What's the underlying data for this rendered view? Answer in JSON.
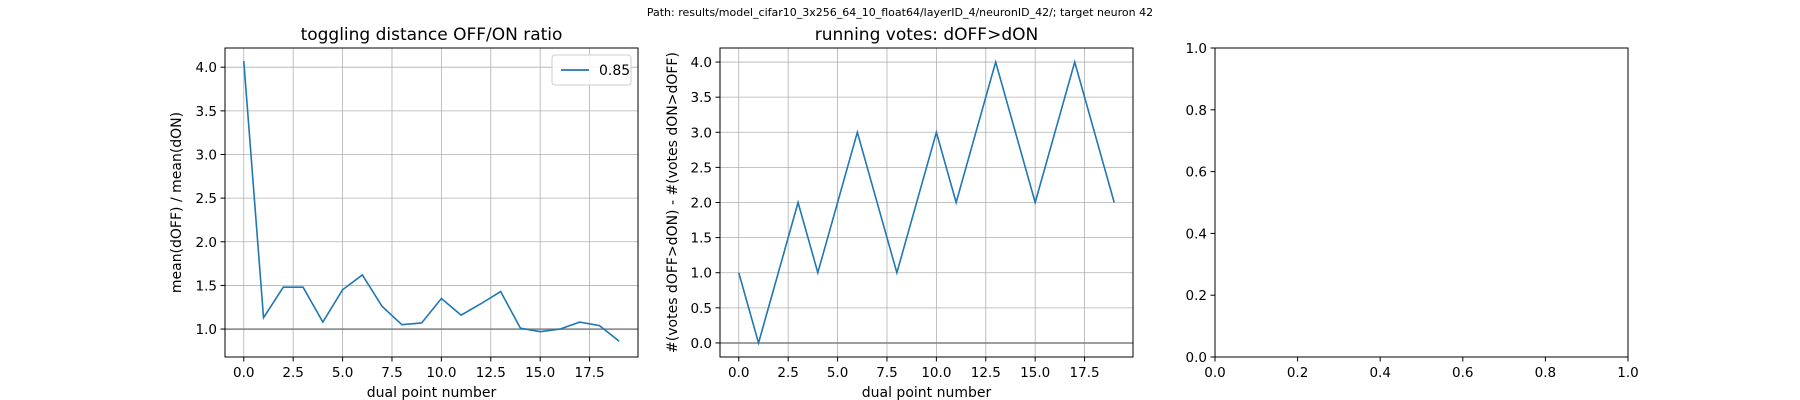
{
  "suptitle": "Path: results/model_cifar10_3x256_64_10_float64/layerID_4/neuronID_42/; target neuron 42",
  "chart_data": [
    {
      "type": "line",
      "title": "toggling distance OFF/ON ratio",
      "xlabel": "dual point number",
      "ylabel": "mean(dOFF) / mean(dON)",
      "xlim": [
        -0.95,
        19.95
      ],
      "ylim": [
        0.68,
        4.22
      ],
      "xticks": [
        0.0,
        2.5,
        5.0,
        7.5,
        10.0,
        12.5,
        15.0,
        17.5
      ],
      "xtick_labels": [
        "0.0",
        "2.5",
        "5.0",
        "7.5",
        "10.0",
        "12.5",
        "15.0",
        "17.5"
      ],
      "yticks": [
        1.0,
        1.5,
        2.0,
        2.5,
        3.0,
        3.5,
        4.0
      ],
      "ytick_labels": [
        "1.0",
        "1.5",
        "2.0",
        "2.5",
        "3.0",
        "3.5",
        "4.0"
      ],
      "grid": true,
      "reference_line": 1.0,
      "legend": "upper right",
      "series": [
        {
          "name": "0.85",
          "color": "#1f77b4",
          "x": [
            0,
            1,
            2,
            3,
            4,
            5,
            6,
            7,
            8,
            9,
            10,
            11,
            12,
            13,
            14,
            15,
            16,
            17,
            18,
            19
          ],
          "y": [
            4.07,
            1.13,
            1.48,
            1.48,
            1.08,
            1.45,
            1.62,
            1.26,
            1.05,
            1.07,
            1.35,
            1.16,
            1.29,
            1.43,
            1.01,
            0.97,
            1.0,
            1.08,
            1.04,
            0.86
          ]
        }
      ]
    },
    {
      "type": "line",
      "title": "running votes: dOFF>dON",
      "xlabel": "dual point number",
      "ylabel": "#(votes dOFF>dON) - #(votes dON>dOFF)",
      "xlim": [
        -0.95,
        19.95
      ],
      "ylim": [
        -0.2,
        4.2
      ],
      "xticks": [
        0.0,
        2.5,
        5.0,
        7.5,
        10.0,
        12.5,
        15.0,
        17.5
      ],
      "xtick_labels": [
        "0.0",
        "2.5",
        "5.0",
        "7.5",
        "10.0",
        "12.5",
        "15.0",
        "17.5"
      ],
      "yticks": [
        0.0,
        0.5,
        1.0,
        1.5,
        2.0,
        2.5,
        3.0,
        3.5,
        4.0
      ],
      "ytick_labels": [
        "0.0",
        "0.5",
        "1.0",
        "1.5",
        "2.0",
        "2.5",
        "3.0",
        "3.5",
        "4.0"
      ],
      "grid": true,
      "reference_line": 0.0,
      "series": [
        {
          "color": "#1f77b4",
          "x": [
            0,
            1,
            3,
            4,
            6,
            8,
            10,
            11,
            13,
            15,
            17,
            19
          ],
          "y": [
            1,
            0,
            2,
            1,
            3,
            1,
            3,
            2,
            4,
            2,
            4,
            2
          ]
        }
      ]
    },
    {
      "type": "line",
      "title": "",
      "xlabel": "",
      "ylabel": "",
      "xlim": [
        0,
        1
      ],
      "ylim": [
        0,
        1
      ],
      "xticks": [
        0.0,
        0.2,
        0.4,
        0.6,
        0.8,
        1.0
      ],
      "xtick_labels": [
        "0.0",
        "0.2",
        "0.4",
        "0.6",
        "0.8",
        "1.0"
      ],
      "yticks": [
        0.0,
        0.2,
        0.4,
        0.6,
        0.8,
        1.0
      ],
      "ytick_labels": [
        "0.0",
        "0.2",
        "0.4",
        "0.6",
        "0.8",
        "1.0"
      ],
      "grid": false,
      "series": []
    }
  ]
}
